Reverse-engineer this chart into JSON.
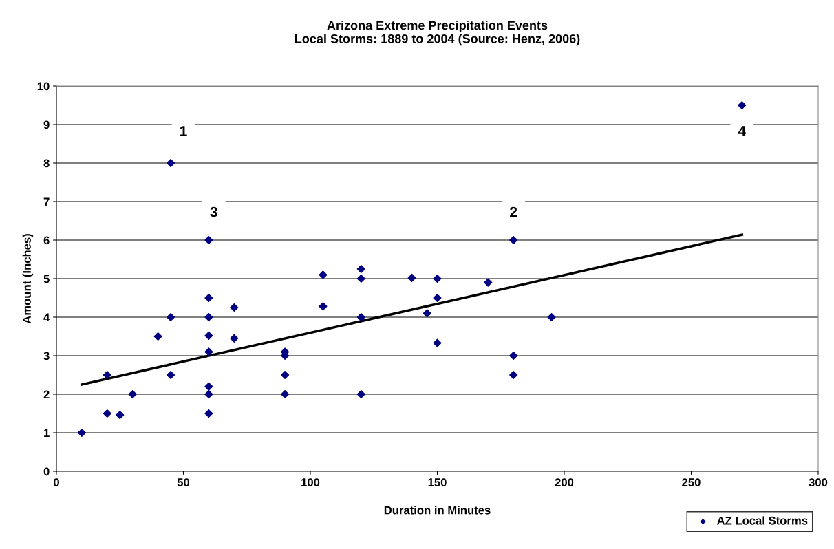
{
  "chart_data": {
    "type": "scatter",
    "title": "Arizona Extreme Precipitation Events\nLocal Storms: 1889 to 2004 (Source: Henz, 2006)",
    "xlabel": "Duration in Minutes",
    "ylabel": "Amount (Inches)",
    "series": [
      {
        "name": "AZ Local Storms",
        "color": "#000080",
        "marker": "diamond",
        "x": [
          10,
          20,
          20,
          25,
          30,
          40,
          45,
          45,
          45,
          60,
          60,
          60,
          60,
          60,
          60,
          60,
          60,
          70,
          70,
          90,
          90,
          90,
          90,
          105,
          105,
          120,
          120,
          120,
          120,
          140,
          146,
          150,
          150,
          150,
          170,
          180,
          180,
          180,
          195,
          270
        ],
        "values": [
          1,
          2.5,
          1.5,
          1.46,
          2,
          3.5,
          8,
          4,
          2.5,
          6,
          4.5,
          4,
          3.52,
          3.1,
          2.2,
          2,
          1.5,
          4.25,
          3.45,
          3.1,
          3,
          2.5,
          2,
          5.1,
          4.28,
          5.25,
          5,
          4,
          2,
          5.02,
          4.1,
          5,
          4.5,
          3.33,
          4.9,
          6,
          3,
          2.5,
          4,
          9.5
        ]
      },
      {
        "type": "line",
        "color": "#000000",
        "marker": "none",
        "line_style": "solid",
        "x": [
          10,
          270
        ],
        "values": [
          2.25,
          6.14
        ]
      }
    ],
    "annotations": [
      {
        "text": "1",
        "x": 50,
        "y": 8.8
      },
      {
        "text": "2",
        "x": 180,
        "y": 6.7
      },
      {
        "text": "3",
        "x": 62,
        "y": 6.7
      },
      {
        "text": "4",
        "x": 270,
        "y": 8.8
      }
    ],
    "xlim": [
      0,
      300
    ],
    "xticks": [
      0,
      50,
      100,
      150,
      200,
      250,
      300
    ],
    "ylim": [
      0,
      10
    ],
    "yticks": [
      0,
      1,
      2,
      3,
      4,
      5,
      6,
      7,
      8,
      9,
      10
    ],
    "grid": "y",
    "legend": "bottom right"
  }
}
